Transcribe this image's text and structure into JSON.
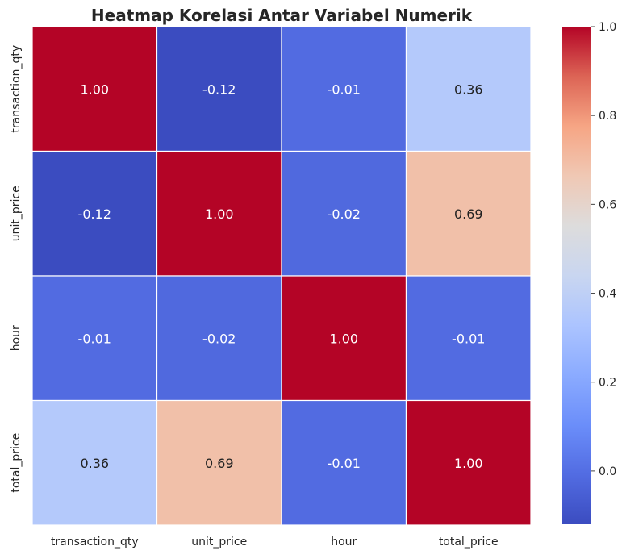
{
  "chart_data": {
    "type": "heatmap",
    "title": "Heatmap Korelasi Antar Variabel Numerik",
    "xlabel": "",
    "ylabel": "",
    "row_labels": [
      "transaction_qty",
      "unit_price",
      "hour",
      "total_price"
    ],
    "col_labels": [
      "transaction_qty",
      "unit_price",
      "hour",
      "total_price"
    ],
    "values": [
      [
        1.0,
        -0.12,
        -0.01,
        0.36
      ],
      [
        -0.12,
        1.0,
        -0.02,
        0.69
      ],
      [
        -0.01,
        -0.02,
        1.0,
        -0.01
      ],
      [
        0.36,
        0.69,
        -0.01,
        1.0
      ]
    ],
    "cell_labels": [
      [
        "1.00",
        "-0.12",
        "-0.01",
        "0.36"
      ],
      [
        "-0.12",
        "1.00",
        "-0.02",
        "0.69"
      ],
      [
        "-0.01",
        "-0.02",
        "1.00",
        "-0.01"
      ],
      [
        "0.36",
        "0.69",
        "-0.01",
        "1.00"
      ]
    ],
    "colormap": "coolwarm",
    "vmin": -0.12,
    "vmax": 1.0,
    "colorbar_ticks": [
      1.0,
      0.8,
      0.6,
      0.4,
      0.2,
      0.0
    ],
    "colorbar_tick_labels": [
      "1.0",
      "0.8",
      "0.6",
      "0.4",
      "0.2",
      "0.0"
    ],
    "colors": {
      "cold": "#3b4cc0",
      "neutral": "#dddcdc",
      "hot": "#b40426"
    }
  }
}
